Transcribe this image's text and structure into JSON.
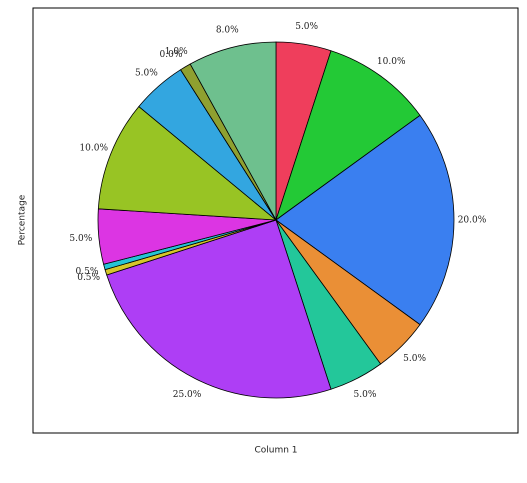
{
  "chart_data": {
    "type": "pie",
    "x_label": "Column 1",
    "y_label": "Percentage",
    "values": [
      5,
      10,
      20,
      5,
      5,
      25,
      0.5,
      0.5,
      5,
      10,
      5,
      0,
      1,
      8
    ],
    "value_labels": [
      "5.0%",
      "10.0%",
      "20.0%",
      "5.0%",
      "5.0%",
      "25.0%",
      "0.5%",
      "0.5%",
      "5.0%",
      "10.0%",
      "5.0%",
      "0.0%",
      "1.0%",
      "8.0%"
    ],
    "colors": [
      "#ef3e5c",
      "#23c936",
      "#3a7ff0",
      "#ea8f36",
      "#23c79a",
      "#ae3ef5",
      "#d6c72a",
      "#26c4d6",
      "#dc35e3",
      "#98c424",
      "#33a6e0",
      "#222222",
      "#8fa030",
      "#6ec08e"
    ]
  }
}
